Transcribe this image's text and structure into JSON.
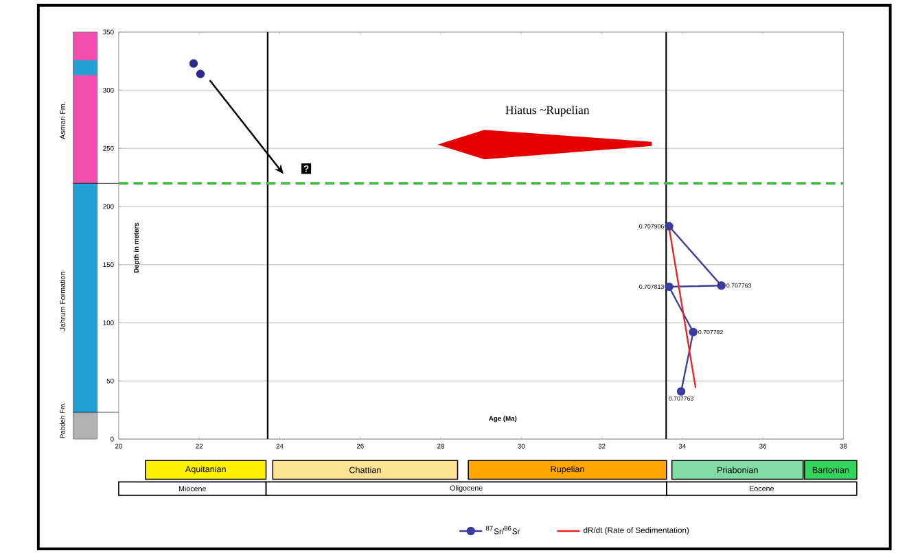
{
  "chart_data": {
    "type": "scatter",
    "xlabel": "Age (Ma)",
    "ylabel": "Depth in meters",
    "xlim": [
      20,
      38
    ],
    "ylim": [
      0,
      350
    ],
    "xticks": [
      20,
      22,
      24,
      26,
      28,
      30,
      32,
      34,
      36,
      38
    ],
    "yticks": [
      0,
      50,
      100,
      150,
      200,
      250,
      300,
      350
    ],
    "grid": "y",
    "legend": "bottom",
    "series": [
      {
        "name": "$^{87}$Sr/$^{86}$Sr",
        "type": "line",
        "color": "#3c3ca0",
        "marker": "circle",
        "x": [
          33.67,
          34.97,
          33.67,
          34.27,
          33.97
        ],
        "values": [
          183,
          132,
          131,
          92,
          41
        ]
      },
      {
        "color": "#2b2b8c",
        "marker": "circle",
        "x": [
          21.86,
          22.03
        ],
        "values": [
          323,
          314
        ]
      },
      {
        "name": "dR/dt (Rate of Sedimentation)",
        "type": "line",
        "color": "#ee2222",
        "marker": "none",
        "x": [
          33.67,
          34.33
        ],
        "values": [
          182,
          44
        ]
      }
    ],
    "ref_lines": [
      {
        "axis": "x",
        "value": 23.7,
        "color": "#000000"
      },
      {
        "axis": "x",
        "value": 33.6,
        "color": "#000000"
      },
      {
        "axis": "y",
        "value": 220,
        "color": "#44bb44",
        "line_style": "dashed"
      }
    ],
    "annotations": [
      "Hiatus ~Rupelian",
      "?",
      "Asmari Fm.",
      "Jahrum Formation",
      "Pabdeh Fm.",
      "Aquitanian",
      "Chattian",
      "Rupelian",
      "Priabonian",
      "Bartonian",
      "Miocene",
      "Oligocene",
      "Eocene",
      {
        "text": "0.707906",
        "x": 33.67,
        "y": 183
      },
      {
        "text": "0.707763",
        "x": 34.97,
        "y": 132
      },
      {
        "text": "0.707813",
        "x": 33.67,
        "y": 131
      },
      {
        "text": "0.707782",
        "x": 34.27,
        "y": 92
      },
      {
        "text": "0.707763",
        "x": 33.97,
        "y": 41
      }
    ]
  }
}
